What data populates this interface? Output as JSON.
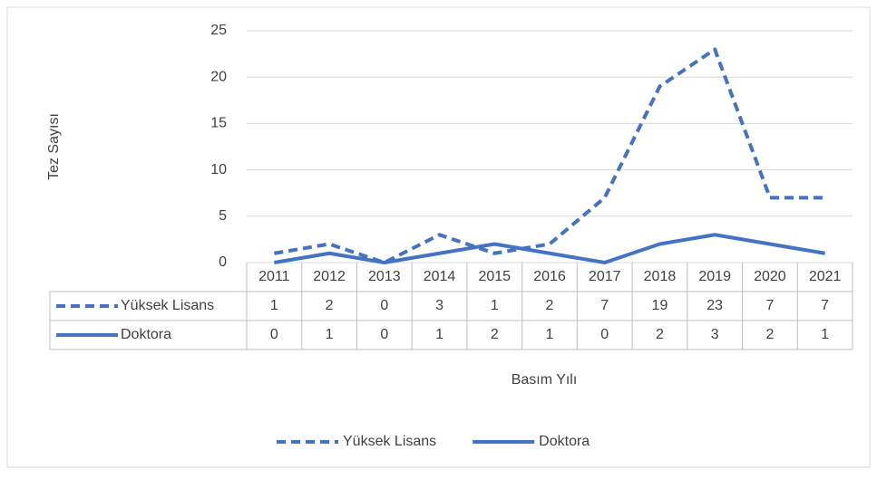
{
  "chart_data": {
    "type": "line",
    "x_label": "Basım Yılı",
    "y_label": "Tez Sayısı",
    "categories": [
      "2011",
      "2012",
      "2013",
      "2014",
      "2015",
      "2016",
      "2017",
      "2018",
      "2019",
      "2020",
      "2021"
    ],
    "series": [
      {
        "name": "Yüksek Lisans",
        "color": "#4472c4",
        "dashed": true,
        "values": [
          1,
          2,
          0,
          3,
          1,
          2,
          7,
          19,
          23,
          7,
          7
        ]
      },
      {
        "name": "Doktora",
        "color": "#4472c4",
        "dashed": false,
        "values": [
          0,
          1,
          0,
          1,
          2,
          1,
          0,
          2,
          3,
          2,
          1
        ]
      }
    ],
    "ylim": [
      0,
      25
    ],
    "yticks": [
      0,
      5,
      10,
      15,
      20,
      25
    ],
    "grid": true,
    "legend": "bottom",
    "data_table": true
  }
}
